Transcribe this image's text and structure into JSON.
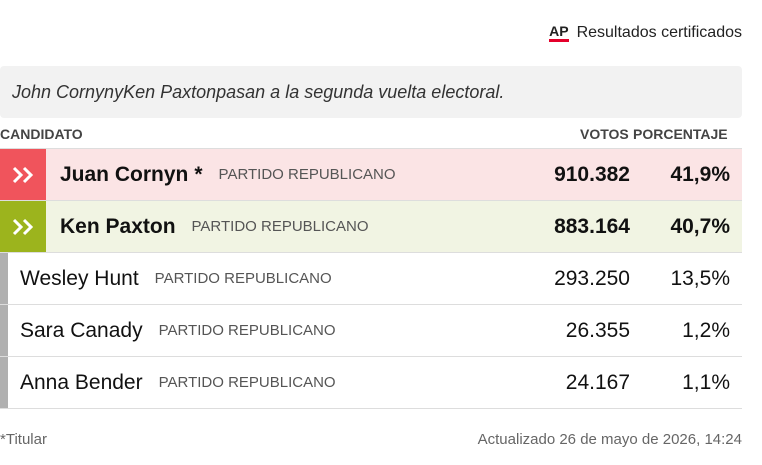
{
  "header": {
    "logo": "AP",
    "status": "Resultados certificados"
  },
  "banner": {
    "first": "John Cornyn",
    "joiner": "y",
    "second": "Ken Paxton",
    "rest": "pasan a la segunda vuelta electoral."
  },
  "table": {
    "columns": [
      "CANDIDATO",
      "VOTOS",
      "PORCENTAJE"
    ],
    "rows": [
      {
        "name": "Juan Cornyn",
        "mark": "*",
        "party": "PARTIDO REPUBLICANO",
        "votes": "910.382",
        "percent": "41,9%",
        "background": "#fbe4e5",
        "color": "#f0545c"
      },
      {
        "name": "Ken Paxton",
        "party": "PARTIDO REPUBLICANO",
        "votes": "883.164",
        "percent": "40,7%",
        "background": "#f1f4e3",
        "color": "#9cb41d"
      },
      {
        "name": "Wesley Hunt",
        "party": "PARTIDO REPUBLICANO",
        "votes": "293.250",
        "percent": "13,5%",
        "color": "#b0b0b0"
      },
      {
        "name": "Sara Canady",
        "party": "PARTIDO REPUBLICANO",
        "votes": "26.355",
        "percent": "1,2%",
        "color": "#b0b0b0"
      },
      {
        "name": "Anna Bender",
        "party": "PARTIDO REPUBLICANO",
        "votes": "24.167",
        "percent": "1,1%",
        "color": "#b0b0b0"
      }
    ]
  },
  "footer": {
    "note": "*Titular",
    "updated": "Actualizado 26 de mayo de 2026, 14:24"
  }
}
